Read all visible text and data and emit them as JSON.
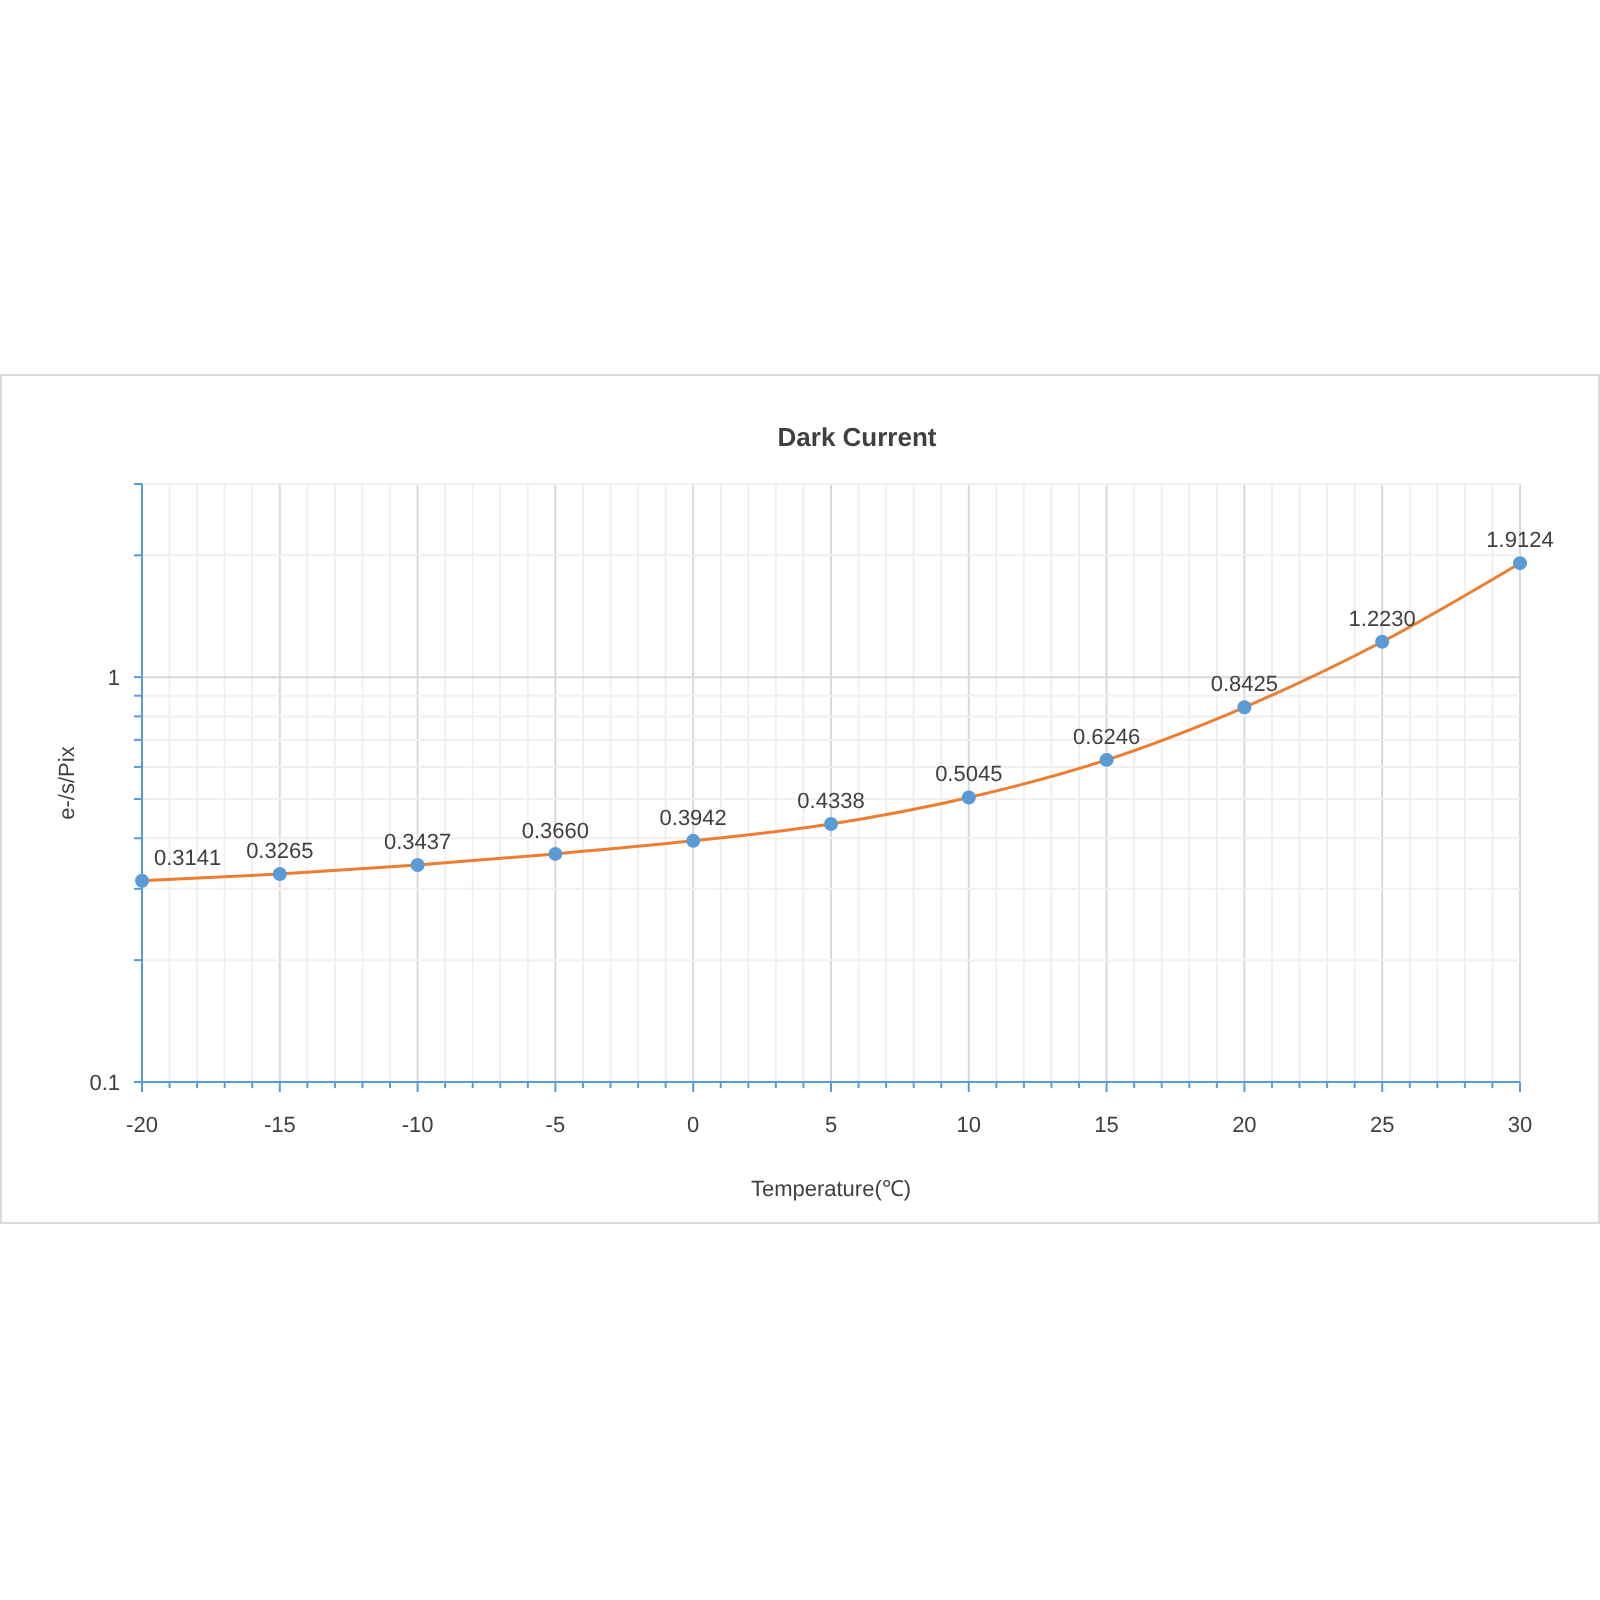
{
  "chart_data": {
    "type": "line",
    "title": "Dark Current",
    "xlabel": "Temperature(℃)",
    "ylabel": "e-/s/Pix",
    "x": [
      -20,
      -15,
      -10,
      -5,
      0,
      5,
      10,
      15,
      20,
      25,
      30
    ],
    "series": [
      {
        "color": "#ed7d31",
        "colors": [
          "#5b9bd5",
          "#5b9bd5",
          "#5b9bd5",
          "#5b9bd5",
          "#5b9bd5",
          "#5b9bd5",
          "#5b9bd5",
          "#5b9bd5",
          "#5b9bd5",
          "#5b9bd5",
          "#5b9bd5"
        ],
        "values": [
          0.3141,
          0.3265,
          0.3437,
          0.366,
          0.3942,
          0.4338,
          0.5045,
          0.6246,
          0.8425,
          1.223,
          1.9124
        ],
        "value_labels": [
          "0.3141",
          "0.3265",
          "0.3437",
          "0.3660",
          "0.3942",
          "0.4338",
          "0.5045",
          "0.6246",
          "0.8425",
          "1.2230",
          "1.9124"
        ]
      }
    ],
    "log": "y",
    "xlim": [
      -20,
      30
    ],
    "xticks": [
      -20,
      {
        "value": -19,
        "label": null
      },
      {
        "value": -18,
        "label": null
      },
      {
        "value": -17,
        "label": null
      },
      {
        "value": -16,
        "label": null
      },
      -15,
      {
        "value": -14,
        "label": null
      },
      {
        "value": -13,
        "label": null
      },
      {
        "value": -12,
        "label": null
      },
      {
        "value": -11,
        "label": null
      },
      -10,
      {
        "value": -9,
        "label": null
      },
      {
        "value": -8,
        "label": null
      },
      {
        "value": -7,
        "label": null
      },
      {
        "value": -6,
        "label": null
      },
      -5,
      {
        "value": -4,
        "label": null
      },
      {
        "value": -3,
        "label": null
      },
      {
        "value": -2,
        "label": null
      },
      {
        "value": -1,
        "label": null
      },
      0,
      {
        "value": 1,
        "label": null
      },
      {
        "value": 2,
        "label": null
      },
      {
        "value": 3,
        "label": null
      },
      {
        "value": 4,
        "label": null
      },
      5,
      {
        "value": 6,
        "label": null
      },
      {
        "value": 7,
        "label": null
      },
      {
        "value": 8,
        "label": null
      },
      {
        "value": 9,
        "label": null
      },
      10,
      {
        "value": 11,
        "label": null
      },
      {
        "value": 12,
        "label": null
      },
      {
        "value": 13,
        "label": null
      },
      {
        "value": 14,
        "label": null
      },
      15,
      {
        "value": 16,
        "label": null
      },
      {
        "value": 17,
        "label": null
      },
      {
        "value": 18,
        "label": null
      },
      {
        "value": 19,
        "label": null
      },
      20,
      {
        "value": 21,
        "label": null
      },
      {
        "value": 22,
        "label": null
      },
      {
        "value": 23,
        "label": null
      },
      {
        "value": 24,
        "label": null
      },
      25,
      {
        "value": 26,
        "label": null
      },
      {
        "value": 27,
        "label": null
      },
      {
        "value": 28,
        "label": null
      },
      {
        "value": 29,
        "label": null
      },
      30
    ],
    "ylim": [
      0.1,
      3
    ],
    "yticks": [
      0.1,
      {
        "value": 0.2,
        "label": null
      },
      {
        "value": 0.3,
        "label": null
      },
      {
        "value": 0.4,
        "label": null
      },
      {
        "value": 0.5,
        "label": null
      },
      {
        "value": 0.6,
        "label": null
      },
      {
        "value": 0.7,
        "label": null
      },
      {
        "value": 0.8,
        "label": null
      },
      {
        "value": 0.9,
        "label": null
      },
      1,
      {
        "value": 2,
        "label": null
      },
      {
        "value": 3,
        "label": null
      }
    ],
    "grid": true,
    "marker": "circle",
    "line_style": "solid"
  }
}
